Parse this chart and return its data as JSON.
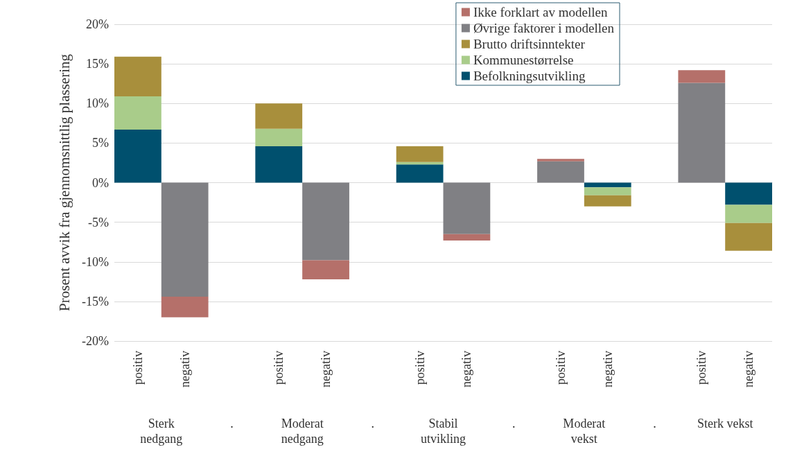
{
  "chart_data": {
    "type": "bar",
    "stacked": true,
    "ylabel": "Prosent avvik fra gjennomsnittlig plassering",
    "categories": [
      "positiv",
      "negativ",
      null,
      "positiv",
      "negativ",
      null,
      "positiv",
      "negativ",
      null,
      "positiv",
      "negativ",
      null,
      "positiv",
      "negativ"
    ],
    "annotations": [
      "Sterk\nnedgang",
      ".",
      "Moderat\nnedgang",
      ".",
      "Stabil\nutvikling",
      ".",
      "Moderat\nvekst",
      ".",
      "Sterk vekst"
    ],
    "series": [
      {
        "name": "Befolkningsutvikling",
        "color": "#00506e",
        "values": [
          6.7,
          null,
          null,
          4.6,
          null,
          null,
          2.3,
          null,
          null,
          null,
          -0.6,
          null,
          null,
          -2.8
        ]
      },
      {
        "name": "Kommunestørrelse",
        "color": "#a9cc8a",
        "values": [
          4.2,
          null,
          null,
          2.2,
          null,
          null,
          0.3,
          null,
          null,
          null,
          -1.0,
          null,
          null,
          -2.3
        ]
      },
      {
        "name": "Brutto driftsinntekter",
        "color": "#a88f3c",
        "values": [
          5.0,
          null,
          null,
          3.2,
          null,
          null,
          2.0,
          null,
          null,
          null,
          -1.4,
          null,
          null,
          -3.5
        ]
      },
      {
        "name": "Øvrige faktorer i modellen",
        "color": "#808084",
        "values": [
          null,
          -14.4,
          null,
          null,
          -9.8,
          null,
          null,
          -6.5,
          null,
          2.7,
          null,
          null,
          12.6,
          null
        ]
      },
      {
        "name": "Ikke forklart av modellen",
        "color": "#b5706a",
        "values": [
          null,
          -2.6,
          null,
          null,
          -2.4,
          null,
          null,
          -0.8,
          null,
          0.3,
          null,
          null,
          1.6,
          null
        ]
      }
    ],
    "ylim": [
      -20,
      20
    ],
    "yticks": [
      {
        "value": -20,
        "label": "-20%"
      },
      {
        "value": -15,
        "label": "-15%"
      },
      {
        "value": -10,
        "label": "-10%"
      },
      {
        "value": -5,
        "label": "-5%"
      },
      {
        "value": 0,
        "label": "0%"
      },
      {
        "value": 5,
        "label": "5%"
      },
      {
        "value": 10,
        "label": "10%"
      },
      {
        "value": 15,
        "label": "15%"
      },
      {
        "value": 20,
        "label": "20%"
      }
    ],
    "grid": "y",
    "legend": "top right"
  }
}
